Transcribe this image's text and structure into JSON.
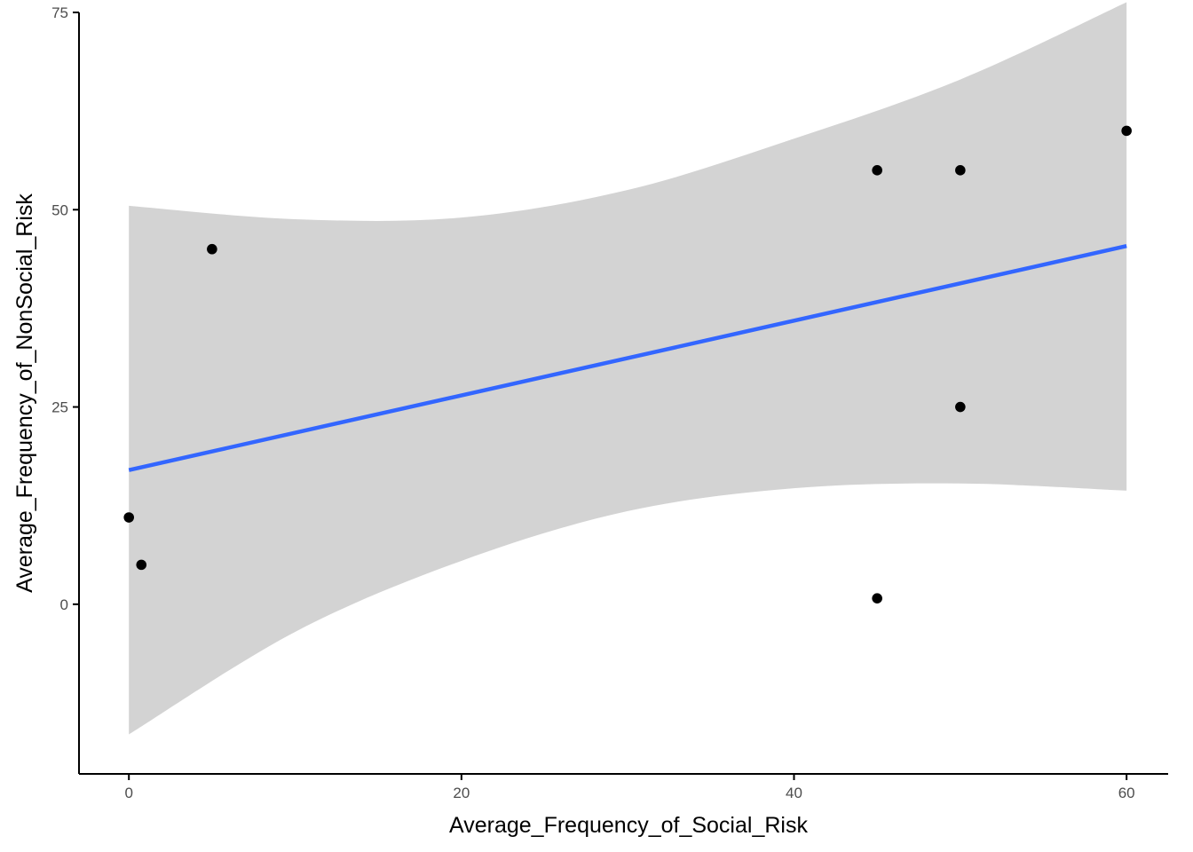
{
  "chart_data": {
    "type": "scatter",
    "title": "",
    "xlabel": "Average_Frequency_of_Social_Risk",
    "ylabel": "Average_Frequency_of_NonSocial_Risk",
    "xlim": [
      -3,
      62.5
    ],
    "ylim": [
      -21.5,
      75
    ],
    "x_ticks": [
      0,
      20,
      40,
      60
    ],
    "y_ticks": [
      0,
      25,
      50,
      75
    ],
    "x_tick_labels": [
      "0",
      "20",
      "40",
      "60"
    ],
    "y_tick_labels": [
      "0",
      "25",
      "50",
      "75"
    ],
    "grid": false,
    "legend": "none",
    "points": [
      {
        "x": 0,
        "y": 11
      },
      {
        "x": 0.75,
        "y": 5
      },
      {
        "x": 5,
        "y": 45
      },
      {
        "x": 45,
        "y": 55
      },
      {
        "x": 45,
        "y": 0.75
      },
      {
        "x": 50,
        "y": 55
      },
      {
        "x": 50,
        "y": 25
      },
      {
        "x": 60,
        "y": 60
      }
    ],
    "trend_line": {
      "method": "lm",
      "x": [
        0,
        60
      ],
      "y": [
        17.0,
        45.4
      ]
    },
    "confidence_band": {
      "x": [
        0,
        10,
        20,
        30,
        40,
        50,
        60
      ],
      "lower": [
        -16.5,
        -3.5,
        5.5,
        11.8,
        14.7,
        15.3,
        14.4
      ],
      "upper": [
        50.5,
        48.8,
        49.0,
        52.5,
        59.0,
        66.5,
        76.3
      ]
    },
    "colors": {
      "points": "#000000",
      "trend_line": "#3366ff",
      "confidence_band": "#d3d3d3",
      "axis": "#000000",
      "tick_label": "#4d4d4d"
    }
  }
}
